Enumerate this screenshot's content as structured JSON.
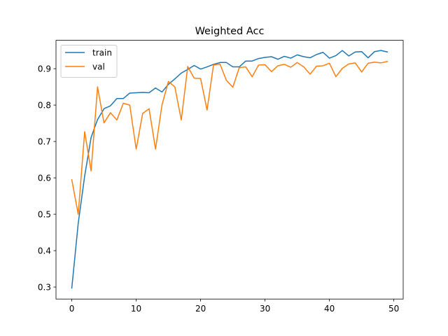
{
  "chart_data": {
    "type": "line",
    "title": "Weighted Acc",
    "xlabel": "",
    "ylabel": "",
    "xlim": [
      -2.45,
      51.45
    ],
    "ylim": [
      0.267,
      0.978
    ],
    "x_ticks": [
      0,
      10,
      20,
      30,
      40,
      50
    ],
    "y_ticks": [
      0.3,
      0.4,
      0.5,
      0.6,
      0.7,
      0.8,
      0.9
    ],
    "x_tick_labels": [
      "0",
      "10",
      "20",
      "30",
      "40",
      "50"
    ],
    "y_tick_labels": [
      "0.3",
      "0.4",
      "0.5",
      "0.6",
      "0.7",
      "0.8",
      "0.9"
    ],
    "grid": false,
    "legend_position": "upper-left",
    "x": [
      0,
      1,
      2,
      3,
      4,
      5,
      6,
      7,
      8,
      9,
      10,
      11,
      12,
      13,
      14,
      15,
      16,
      17,
      18,
      19,
      20,
      21,
      22,
      23,
      24,
      25,
      26,
      27,
      28,
      29,
      30,
      31,
      32,
      33,
      34,
      35,
      36,
      37,
      38,
      39,
      40,
      41,
      42,
      43,
      44,
      45,
      46,
      47,
      48,
      49
    ],
    "series": [
      {
        "name": "train",
        "color": "#1f77b4",
        "values": [
          0.297,
          0.475,
          0.605,
          0.711,
          0.76,
          0.79,
          0.798,
          0.818,
          0.818,
          0.833,
          0.834,
          0.835,
          0.834,
          0.847,
          0.836,
          0.857,
          0.872,
          0.888,
          0.898,
          0.909,
          0.899,
          0.905,
          0.912,
          0.917,
          0.917,
          0.905,
          0.905,
          0.921,
          0.921,
          0.928,
          0.931,
          0.933,
          0.926,
          0.934,
          0.929,
          0.938,
          0.933,
          0.93,
          0.939,
          0.945,
          0.929,
          0.936,
          0.95,
          0.935,
          0.946,
          0.947,
          0.93,
          0.947,
          0.95,
          0.946
        ]
      },
      {
        "name": "val",
        "color": "#ff7f0e",
        "values": [
          0.595,
          0.5,
          0.727,
          0.619,
          0.85,
          0.751,
          0.779,
          0.759,
          0.805,
          0.8,
          0.679,
          0.777,
          0.79,
          0.679,
          0.8,
          0.865,
          0.85,
          0.759,
          0.906,
          0.874,
          0.873,
          0.786,
          0.91,
          0.913,
          0.868,
          0.849,
          0.903,
          0.905,
          0.878,
          0.91,
          0.911,
          0.892,
          0.908,
          0.912,
          0.904,
          0.917,
          0.905,
          0.885,
          0.907,
          0.908,
          0.915,
          0.878,
          0.901,
          0.913,
          0.916,
          0.891,
          0.915,
          0.918,
          0.916,
          0.92
        ]
      }
    ]
  }
}
